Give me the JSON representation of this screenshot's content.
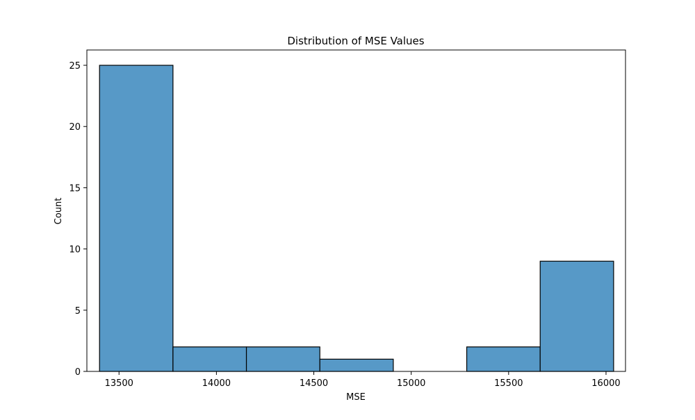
{
  "chart_data": {
    "type": "bar",
    "subtype": "histogram",
    "title": "Distribution of MSE Values",
    "xlabel": "MSE",
    "ylabel": "Count",
    "xlim": [
      13335,
      16100
    ],
    "ylim": [
      0,
      26.25
    ],
    "x_ticks": [
      13500,
      14000,
      14500,
      15000,
      15500,
      16000
    ],
    "y_ticks": [
      0,
      5,
      10,
      15,
      20,
      25
    ],
    "bins": [
      {
        "start": 13400,
        "end": 13777,
        "count": 25
      },
      {
        "start": 13777,
        "end": 14154,
        "count": 2
      },
      {
        "start": 14154,
        "end": 14531,
        "count": 2
      },
      {
        "start": 14531,
        "end": 14908,
        "count": 1
      },
      {
        "start": 14908,
        "end": 15285,
        "count": 0
      },
      {
        "start": 15285,
        "end": 15662,
        "count": 2
      },
      {
        "start": 15662,
        "end": 16039,
        "count": 9
      }
    ],
    "grid": false,
    "colors": {
      "bar_fill": "#5799c7",
      "bar_edge": "#000000",
      "axis": "#000000"
    }
  }
}
